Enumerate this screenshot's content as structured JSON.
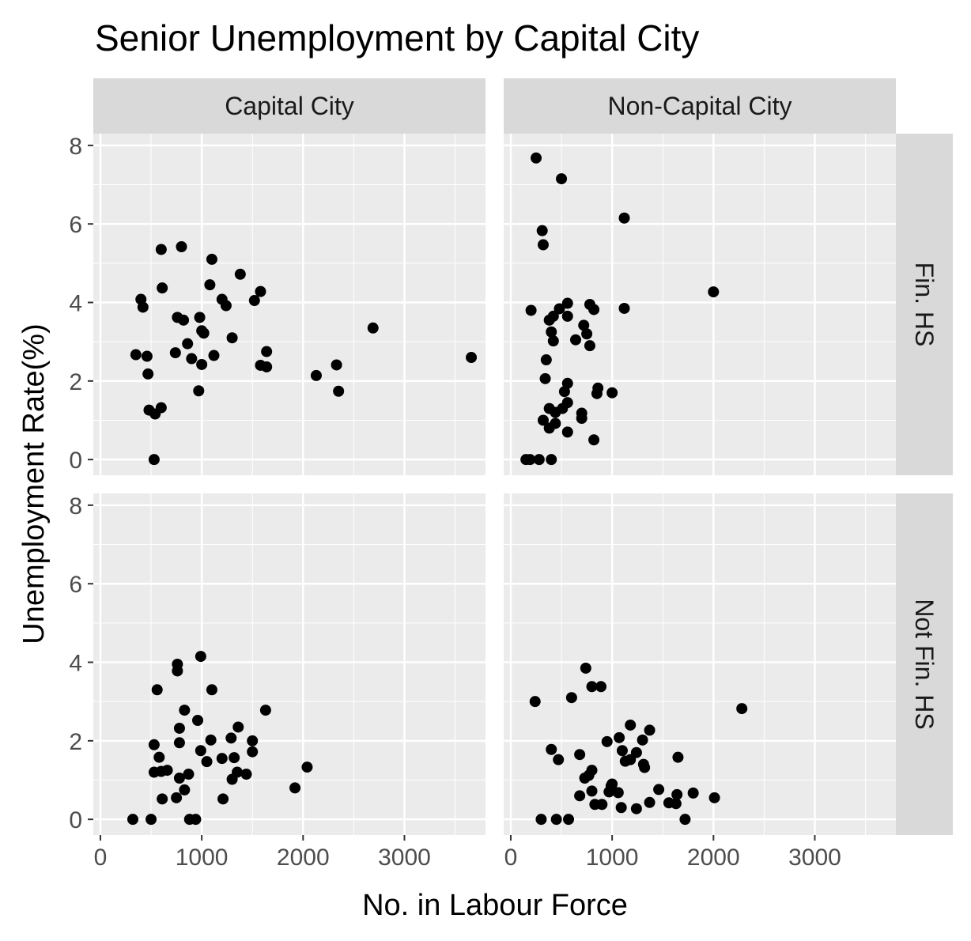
{
  "chart_data": {
    "type": "scatter",
    "title": "Senior Unemployment by Capital City",
    "xlabel": "No. in Labour Force",
    "ylabel": "Unemployment Rate(%)",
    "xlim": [
      -70,
      3800
    ],
    "ylim": [
      -0.4,
      8.3
    ],
    "x_ticks": [
      0,
      1000,
      2000,
      3000
    ],
    "y_ticks": [
      0,
      2,
      4,
      6,
      8
    ],
    "x_tick_labels": [
      "0",
      "1000",
      "2000",
      "3000"
    ],
    "y_tick_labels": [
      "0",
      "2",
      "4",
      "6",
      "8"
    ],
    "grid": true,
    "facet_cols": [
      "Capital City",
      "Non-Capital City"
    ],
    "facet_rows": [
      "Fin. HS",
      "Not Fin. HS"
    ],
    "panels": [
      {
        "col": "Capital City",
        "row": "Fin. HS",
        "points": [
          [
            600,
            5.35
          ],
          [
            800,
            5.42
          ],
          [
            1100,
            5.1
          ],
          [
            1380,
            4.72
          ],
          [
            610,
            4.37
          ],
          [
            1080,
            4.45
          ],
          [
            1580,
            4.28
          ],
          [
            400,
            4.08
          ],
          [
            420,
            3.88
          ],
          [
            1200,
            4.08
          ],
          [
            1240,
            3.92
          ],
          [
            1520,
            4.05
          ],
          [
            760,
            3.62
          ],
          [
            820,
            3.55
          ],
          [
            980,
            3.62
          ],
          [
            1000,
            3.28
          ],
          [
            1020,
            3.22
          ],
          [
            1300,
            3.1
          ],
          [
            860,
            2.95
          ],
          [
            740,
            2.72
          ],
          [
            350,
            2.67
          ],
          [
            460,
            2.63
          ],
          [
            900,
            2.57
          ],
          [
            1000,
            2.42
          ],
          [
            1120,
            2.65
          ],
          [
            1640,
            2.75
          ],
          [
            1580,
            2.4
          ],
          [
            1640,
            2.36
          ],
          [
            470,
            2.18
          ],
          [
            2130,
            2.14
          ],
          [
            2330,
            2.41
          ],
          [
            2690,
            3.35
          ],
          [
            3660,
            2.6
          ],
          [
            970,
            1.75
          ],
          [
            2350,
            1.74
          ],
          [
            480,
            1.26
          ],
          [
            540,
            1.16
          ],
          [
            600,
            1.32
          ],
          [
            530,
            0.0
          ]
        ]
      },
      {
        "col": "Non-Capital City",
        "row": "Fin. HS",
        "points": [
          [
            250,
            7.68
          ],
          [
            500,
            7.15
          ],
          [
            1120,
            6.15
          ],
          [
            310,
            5.83
          ],
          [
            320,
            5.47
          ],
          [
            2000,
            4.27
          ],
          [
            200,
            3.8
          ],
          [
            480,
            3.84
          ],
          [
            560,
            3.98
          ],
          [
            780,
            3.95
          ],
          [
            820,
            3.82
          ],
          [
            1120,
            3.85
          ],
          [
            380,
            3.55
          ],
          [
            420,
            3.65
          ],
          [
            560,
            3.65
          ],
          [
            720,
            3.42
          ],
          [
            750,
            3.2
          ],
          [
            400,
            3.25
          ],
          [
            420,
            3.02
          ],
          [
            640,
            3.05
          ],
          [
            780,
            2.9
          ],
          [
            350,
            2.54
          ],
          [
            340,
            2.06
          ],
          [
            560,
            1.94
          ],
          [
            860,
            1.82
          ],
          [
            850,
            1.68
          ],
          [
            530,
            1.73
          ],
          [
            1000,
            1.7
          ],
          [
            560,
            1.45
          ],
          [
            380,
            1.3
          ],
          [
            440,
            1.2
          ],
          [
            510,
            1.3
          ],
          [
            700,
            1.18
          ],
          [
            700,
            1.05
          ],
          [
            320,
            1.0
          ],
          [
            380,
            0.8
          ],
          [
            440,
            0.92
          ],
          [
            560,
            0.7
          ],
          [
            820,
            0.5
          ],
          [
            150,
            0.0
          ],
          [
            190,
            0.0
          ],
          [
            280,
            0.0
          ],
          [
            400,
            0.0
          ]
        ]
      },
      {
        "col": "Capital City",
        "row": "Not Fin. HS",
        "points": [
          [
            990,
            4.15
          ],
          [
            760,
            3.95
          ],
          [
            760,
            3.78
          ],
          [
            560,
            3.3
          ],
          [
            1100,
            3.3
          ],
          [
            1630,
            2.78
          ],
          [
            830,
            2.78
          ],
          [
            960,
            2.52
          ],
          [
            1360,
            2.35
          ],
          [
            780,
            2.32
          ],
          [
            1090,
            2.02
          ],
          [
            1290,
            2.07
          ],
          [
            1500,
            2.0
          ],
          [
            530,
            1.9
          ],
          [
            780,
            1.95
          ],
          [
            990,
            1.75
          ],
          [
            1500,
            1.72
          ],
          [
            580,
            1.58
          ],
          [
            1050,
            1.47
          ],
          [
            1200,
            1.55
          ],
          [
            1320,
            1.57
          ],
          [
            530,
            1.2
          ],
          [
            600,
            1.22
          ],
          [
            660,
            1.25
          ],
          [
            1350,
            1.2
          ],
          [
            1440,
            1.15
          ],
          [
            2040,
            1.33
          ],
          [
            780,
            1.05
          ],
          [
            870,
            1.15
          ],
          [
            1300,
            1.02
          ],
          [
            830,
            0.75
          ],
          [
            1920,
            0.8
          ],
          [
            610,
            0.52
          ],
          [
            750,
            0.55
          ],
          [
            1210,
            0.52
          ],
          [
            320,
            0.0
          ],
          [
            500,
            0.0
          ],
          [
            880,
            0.0
          ],
          [
            940,
            0.0
          ]
        ]
      },
      {
        "col": "Non-Capital City",
        "row": "Not Fin. HS",
        "points": [
          [
            740,
            3.85
          ],
          [
            800,
            3.38
          ],
          [
            890,
            3.38
          ],
          [
            600,
            3.1
          ],
          [
            240,
            3.0
          ],
          [
            2280,
            2.82
          ],
          [
            1180,
            2.4
          ],
          [
            1370,
            2.27
          ],
          [
            1070,
            2.08
          ],
          [
            1300,
            2.02
          ],
          [
            950,
            1.98
          ],
          [
            400,
            1.78
          ],
          [
            1100,
            1.75
          ],
          [
            1240,
            1.7
          ],
          [
            1650,
            1.58
          ],
          [
            470,
            1.52
          ],
          [
            680,
            1.65
          ],
          [
            1130,
            1.48
          ],
          [
            1180,
            1.52
          ],
          [
            1310,
            1.4
          ],
          [
            1320,
            1.32
          ],
          [
            800,
            1.25
          ],
          [
            770,
            1.12
          ],
          [
            730,
            1.05
          ],
          [
            1000,
            0.9
          ],
          [
            990,
            0.85
          ],
          [
            970,
            0.7
          ],
          [
            1060,
            0.68
          ],
          [
            1460,
            0.76
          ],
          [
            1640,
            0.63
          ],
          [
            1800,
            0.67
          ],
          [
            2010,
            0.55
          ],
          [
            800,
            0.72
          ],
          [
            680,
            0.6
          ],
          [
            1370,
            0.43
          ],
          [
            1560,
            0.42
          ],
          [
            1630,
            0.4
          ],
          [
            830,
            0.38
          ],
          [
            900,
            0.38
          ],
          [
            1090,
            0.3
          ],
          [
            1240,
            0.27
          ],
          [
            300,
            0.0
          ],
          [
            450,
            0.0
          ],
          [
            570,
            0.0
          ],
          [
            1720,
            0.0
          ]
        ]
      }
    ]
  }
}
